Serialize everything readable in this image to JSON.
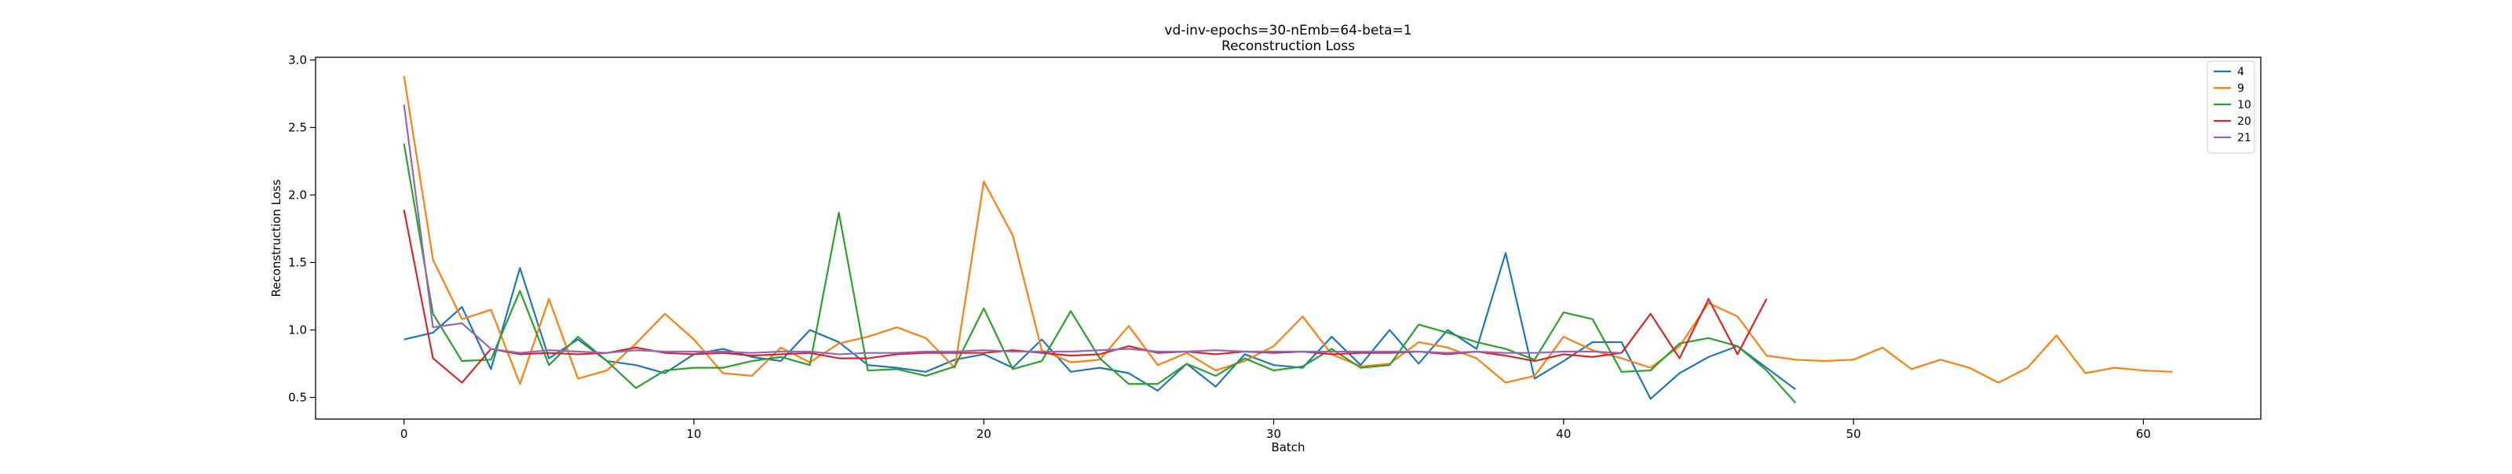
{
  "chart_data": {
    "type": "line",
    "title": "vd-inv-epochs=30-nEmb=64-beta=1",
    "subtitle": "Reconstruction Loss",
    "xlabel": "Batch",
    "ylabel": "Reconstruction Loss",
    "xlim": [
      -3.05,
      64.05
    ],
    "ylim": [
      0.34,
      3.02
    ],
    "xticks": [
      0,
      10,
      20,
      30,
      40,
      50,
      60
    ],
    "yticks": [
      0.5,
      1.0,
      1.5,
      2.0,
      2.5,
      3.0
    ],
    "ytick_labels": [
      "0.5",
      "1.0",
      "1.5",
      "2.0",
      "2.5",
      "3.0"
    ],
    "grid": false,
    "legend": "top-right",
    "series": [
      {
        "name": "4",
        "color": "#1f77b4",
        "values": [
          0.93,
          0.98,
          1.17,
          0.71,
          1.46,
          0.79,
          0.93,
          0.77,
          0.74,
          0.68,
          0.82,
          0.86,
          0.8,
          0.77,
          1.0,
          0.91,
          0.74,
          0.72,
          0.69,
          0.78,
          0.82,
          0.72,
          0.93,
          0.69,
          0.72,
          0.68,
          0.55,
          0.75,
          0.58,
          0.82,
          0.74,
          0.72,
          0.95,
          0.74,
          1.0,
          0.75,
          1.0,
          0.86,
          1.57,
          0.64,
          0.77,
          0.91,
          0.91,
          0.49,
          0.68,
          0.8,
          0.88,
          0.72,
          0.56
        ]
      },
      {
        "name": "9",
        "color": "#ff7f0e",
        "values": [
          2.88,
          1.52,
          1.08,
          1.15,
          0.6,
          1.23,
          0.64,
          0.7,
          0.9,
          1.12,
          0.93,
          0.68,
          0.66,
          0.87,
          0.76,
          0.9,
          0.95,
          1.02,
          0.94,
          0.72,
          2.1,
          1.7,
          0.85,
          0.76,
          0.78,
          1.03,
          0.74,
          0.83,
          0.7,
          0.77,
          0.88,
          1.1,
          0.82,
          0.73,
          0.75,
          0.91,
          0.87,
          0.79,
          0.61,
          0.66,
          0.95,
          0.85,
          0.79,
          0.72,
          0.88,
          1.2,
          1.1,
          0.81,
          0.78,
          0.77,
          0.78,
          0.87,
          0.71,
          0.78,
          0.72,
          0.61,
          0.72,
          0.96,
          0.68,
          0.72,
          0.7,
          0.69
        ]
      },
      {
        "name": "10",
        "color": "#2ca02c",
        "values": [
          2.38,
          1.12,
          0.77,
          0.78,
          1.29,
          0.74,
          0.95,
          0.77,
          0.57,
          0.7,
          0.72,
          0.72,
          0.77,
          0.8,
          0.74,
          1.87,
          0.7,
          0.71,
          0.66,
          0.73,
          1.16,
          0.71,
          0.77,
          1.14,
          0.79,
          0.6,
          0.6,
          0.75,
          0.66,
          0.79,
          0.7,
          0.73,
          0.86,
          0.72,
          0.74,
          1.04,
          0.98,
          0.91,
          0.86,
          0.78,
          1.13,
          1.08,
          0.69,
          0.7,
          0.9,
          0.94,
          0.88,
          0.7,
          0.46
        ]
      },
      {
        "name": "20",
        "color": "#d62728",
        "values": [
          1.89,
          0.79,
          0.61,
          0.86,
          0.82,
          0.83,
          0.82,
          0.83,
          0.87,
          0.83,
          0.82,
          0.83,
          0.81,
          0.82,
          0.83,
          0.79,
          0.79,
          0.82,
          0.83,
          0.83,
          0.83,
          0.85,
          0.83,
          0.81,
          0.82,
          0.88,
          0.83,
          0.84,
          0.82,
          0.84,
          0.83,
          0.84,
          0.82,
          0.83,
          0.83,
          0.84,
          0.82,
          0.84,
          0.81,
          0.77,
          0.82,
          0.8,
          0.83,
          1.12,
          0.79,
          1.23,
          0.82,
          1.23
        ]
      },
      {
        "name": "21",
        "color": "#9467bd",
        "values": [
          2.67,
          1.02,
          1.05,
          0.86,
          0.83,
          0.85,
          0.84,
          0.83,
          0.85,
          0.84,
          0.84,
          0.84,
          0.83,
          0.84,
          0.84,
          0.82,
          0.83,
          0.83,
          0.84,
          0.84,
          0.85,
          0.84,
          0.84,
          0.84,
          0.85,
          0.86,
          0.84,
          0.84,
          0.85,
          0.84,
          0.84,
          0.84,
          0.84,
          0.84,
          0.84,
          0.84,
          0.83,
          0.84,
          0.83,
          0.83,
          0.84,
          0.84,
          0.83
        ]
      }
    ]
  }
}
